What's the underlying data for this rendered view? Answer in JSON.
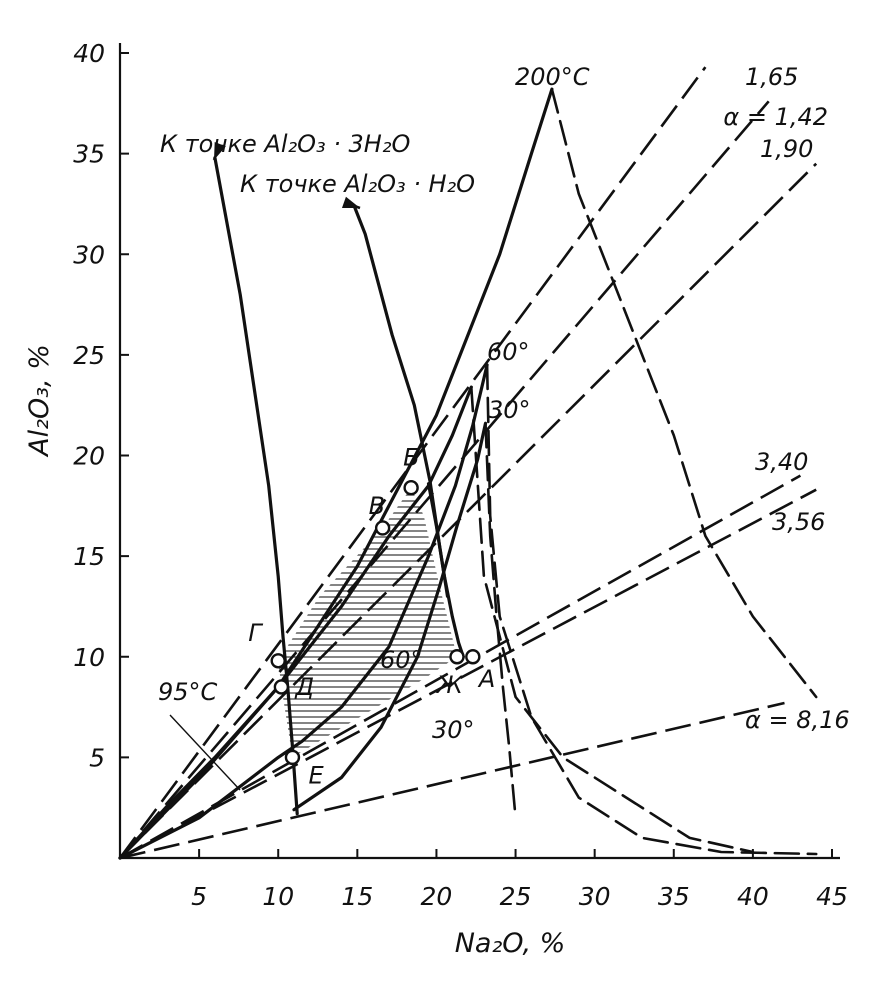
{
  "chart_data": {
    "type": "line",
    "xlabel": "Na₂O, %",
    "ylabel": "Al₂O₃, %",
    "xlim": [
      0,
      45
    ],
    "ylim": [
      0,
      40
    ],
    "x_ticks": [
      5,
      10,
      15,
      20,
      25,
      30,
      35,
      40,
      45
    ],
    "y_ticks": [
      5,
      10,
      15,
      20,
      25,
      30,
      35,
      40
    ],
    "grid": false,
    "isotherm_labels": [
      "200°C",
      "95°C",
      "60°",
      "30°",
      "60°",
      "30°"
    ],
    "molar_ratio_lines": [
      {
        "label": "α = 1,42",
        "x": [
          0,
          37
        ],
        "y": [
          0,
          39.3
        ]
      },
      {
        "label": "1,65",
        "x": [
          0,
          41
        ],
        "y": [
          0,
          37.6
        ]
      },
      {
        "label": "1,90",
        "x": [
          0,
          44
        ],
        "y": [
          0,
          34.5
        ]
      },
      {
        "label": "3,40",
        "x": [
          0,
          43
        ],
        "y": [
          0,
          19
        ]
      },
      {
        "label": "3,56",
        "x": [
          0,
          44
        ],
        "y": [
          0,
          18.3
        ]
      },
      {
        "label": "α = 8,16",
        "x": [
          0,
          42
        ],
        "y": [
          0,
          7.7
        ]
      }
    ],
    "curves": [
      {
        "name": "200°C solubility",
        "style": "solid",
        "x": [
          0,
          5,
          10,
          15,
          20,
          24,
          26,
          27.3
        ],
        "y": [
          0,
          4,
          8.5,
          14.5,
          22,
          30,
          35,
          38.2
        ]
      },
      {
        "name": "200°C metastable",
        "style": "dashed",
        "x": [
          27.3,
          29,
          31,
          33,
          35,
          37,
          40,
          44
        ],
        "y": [
          38.2,
          33,
          29,
          25,
          21,
          16,
          12,
          8
        ]
      },
      {
        "name": "95°C solubility",
        "style": "solid",
        "x": [
          0,
          3,
          6,
          10,
          14,
          17,
          19.5,
          21,
          22.2
        ],
        "y": [
          0,
          2.6,
          5,
          8.5,
          12.5,
          16,
          18.5,
          21,
          23.4
        ]
      },
      {
        "name": "95°C metastable",
        "style": "dashed",
        "x": [
          22.2,
          23,
          25,
          28,
          32,
          36,
          40
        ],
        "y": [
          23.4,
          14,
          8,
          5,
          3,
          1,
          0.3
        ]
      },
      {
        "name": "60° solubility",
        "style": "solid",
        "x": [
          0,
          5,
          10,
          11.5,
          14,
          17,
          19.5,
          21.2,
          22.3,
          23.2
        ],
        "y": [
          0,
          2,
          5,
          5.8,
          7.5,
          10.5,
          15,
          18.5,
          21.5,
          24.5
        ]
      },
      {
        "name": "60° metastable",
        "style": "dashed",
        "x": [
          23.2,
          23.4,
          24,
          26,
          29,
          33,
          38,
          44
        ],
        "y": [
          24.5,
          17,
          12,
          7,
          3,
          1,
          0.3,
          0.2
        ]
      },
      {
        "name": "30° solubility",
        "style": "solid",
        "x": [
          11,
          14,
          16.5,
          18.8,
          20.2,
          21.3,
          22.6,
          23.1
        ],
        "y": [
          2.4,
          4,
          6.5,
          10,
          13.5,
          16.5,
          19.8,
          21.6
        ]
      },
      {
        "name": "30° descending",
        "style": "solid",
        "x": [
          19.5,
          20,
          20.5,
          21,
          21.4,
          21.7
        ],
        "y": [
          18.6,
          16.5,
          14,
          12,
          10.7,
          10
        ]
      },
      {
        "name": "30° metastable",
        "style": "dashed",
        "x": [
          23.1,
          23.4,
          23.8,
          24.2,
          24.6,
          25
        ],
        "y": [
          21.6,
          16,
          12,
          8.5,
          5.5,
          2
        ]
      },
      {
        "name": "hydrargillite boundary",
        "style": "solid",
        "x": [
          11.2,
          10.9,
          10.6,
          10.3,
          10,
          9.4,
          7.6,
          6
        ],
        "y": [
          2.2,
          5.5,
          8.5,
          11,
          14,
          18.5,
          28,
          34.8
        ]
      },
      {
        "name": "monohydrate boundary",
        "style": "solid",
        "x": [
          20.7,
          20.2,
          19.6,
          18.6,
          17.2,
          15.5,
          14.8
        ],
        "y": [
          13,
          15.5,
          18.7,
          22.5,
          26,
          31,
          32.4
        ]
      }
    ],
    "points": [
      {
        "label": "Б",
        "x": 18.4,
        "y": 18.4
      },
      {
        "label": "В",
        "x": 16.6,
        "y": 16.4
      },
      {
        "label": "Г",
        "x": 10,
        "y": 9.8
      },
      {
        "label": "Д",
        "x": 10.2,
        "y": 8.5
      },
      {
        "label": "Е",
        "x": 10.9,
        "y": 5
      },
      {
        "label": "Ж",
        "x": 21.3,
        "y": 10
      },
      {
        "label": "А",
        "x": 22.3,
        "y": 10
      }
    ],
    "shaded_region": {
      "x": [
        16.6,
        18.4,
        19.2,
        20.2,
        21.3,
        19.2,
        16,
        13,
        10.9,
        10.2,
        10,
        12.6
      ],
      "y": [
        16.4,
        18.4,
        17,
        13.5,
        10,
        8.9,
        7.4,
        6,
        5,
        8.5,
        9.8,
        13
      ]
    },
    "annotations": {
      "al_trihydrate": "К точке Al₂O₃ · 3H₂O",
      "al_monohydrate": "К точке Al₂O₃ · H₂O"
    }
  }
}
